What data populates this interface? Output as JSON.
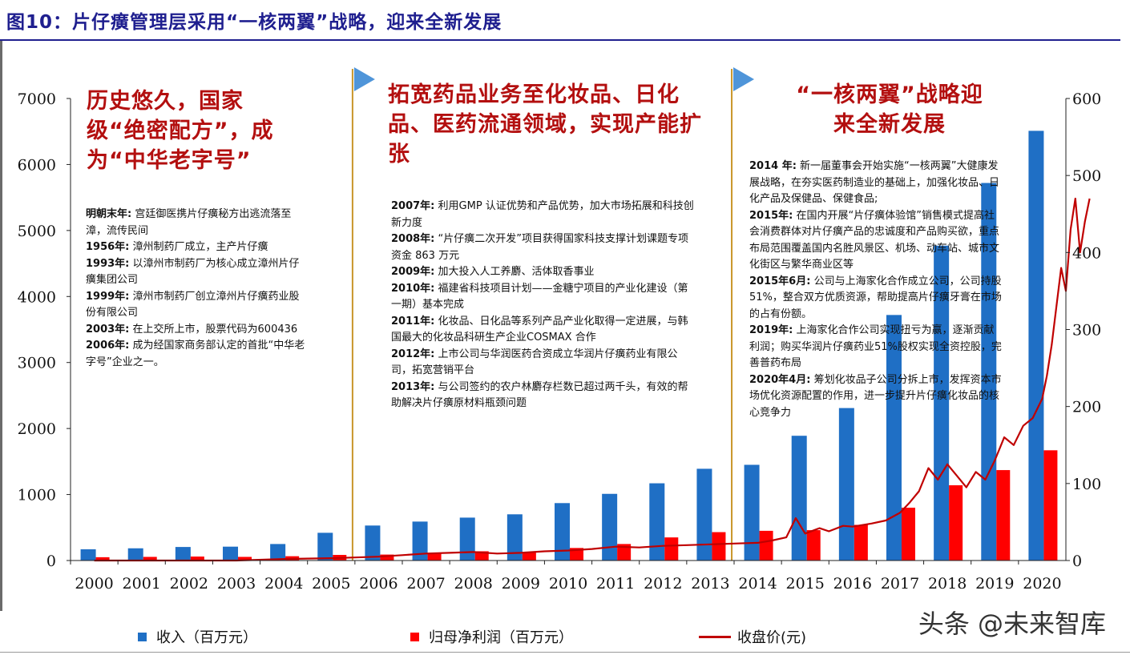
{
  "figure_title": "图10：片仔癀管理层采用“一核两翼”战略，迎来全新发展",
  "periods": [
    {
      "heading": "历史悠久，国家级“绝密配方”，成为“中华老字号”",
      "items": [
        {
          "year": "明朝末年:",
          "text": "宫廷御医携片仔癀秘方出逃流落至漳，流传民间"
        },
        {
          "year": "1956年:",
          "text": "漳州制药厂成立，主产片仔癀"
        },
        {
          "year": "1993年:",
          "text": "以漳州市制药厂为核心成立漳州片仔癀集团公司"
        },
        {
          "year": "1999年:",
          "text": "漳州市制药厂创立漳州片仔癀药业股份有限公司"
        },
        {
          "year": "2003年:",
          "text": "在上交所上市，股票代码为600436"
        },
        {
          "year": "2006年:",
          "text": "成为经国家商务部认定的首批“中华老字号”企业之一。"
        }
      ]
    },
    {
      "heading": "拓宽药品业务至化妆品、日化品、医药流通领域，实现产能扩张",
      "items": [
        {
          "year": "2007年:",
          "text": "利用GMP 认证优势和产品优势，加大市场拓展和科技创新力度"
        },
        {
          "year": "2008年:",
          "text": "“片仔癀二次开发”项目获得国家科技支撑计划课题专项资金 863 万元"
        },
        {
          "year": "2009年:",
          "text": "加大投入人工养麝、活体取香事业"
        },
        {
          "year": "2010年:",
          "text": "福建省科技项目计划——金糖宁项目的产业化建设（第一期）基本完成"
        },
        {
          "year": "2011年:",
          "text": "化妆品、日化品等系列产品产业化取得一定进展，与韩国最大的化妆品科研生产企业COSMAX 合作"
        },
        {
          "year": "2012年:",
          "text": "上市公司与华润医药合资成立华润片仔癀药业有限公司，拓宽营销平台"
        },
        {
          "year": "2013年:",
          "text": "与公司签约的农户林麝存栏数已超过两千头，有效的帮助解决片仔癀原材料瓶颈问题"
        }
      ]
    },
    {
      "heading": "“一核两翼”战略迎来全新发展",
      "items": [
        {
          "year": "2014 年:",
          "text": "新一届董事会开始实施“一核两翼”大健康发展战略，在夯实医药制造业的基础上，加强化妆品、日化产品及保健品、保健食品;"
        },
        {
          "year": "2015年:",
          "text": "在国内开展“片仔癀体验馆”销售模式提高社会消费群体对片仔癀产品的忠诚度和产品购买欲，重点布局范围覆盖国内名胜风景区、机场、动车站、城市文化街区与繁华商业区等"
        },
        {
          "year": "2015年6月:",
          "text": "公司与上海家化合作成立公司，公司持股51%，整合双方优质资源，帮助提高片仔癀牙膏在市场的占有份额。"
        },
        {
          "year": "2019年:",
          "text": "上海家化合作公司实现扭亏为赢，逐渐贡献利润；购买华润片仔癀药业51%股权实现全资控股，完善普药布局"
        },
        {
          "year": "2020年4月:",
          "text": "筹划化妆品子公司分拆上市，发挥资本市场优化资源配置的作用，进一步提升片仔癀化妆品的核心竞争力"
        }
      ]
    }
  ],
  "legend": {
    "revenue": "收入（百万元）",
    "profit": "归母净利润（百万元）",
    "price": "收盘价(元)"
  },
  "watermark": "头条 @未来智库",
  "colors": {
    "revenue": "#1f6fc5",
    "profit": "#ff0000",
    "price": "#c00000",
    "divider": "#c9962a",
    "arrow": "#4f95d9",
    "heading": "#b30f0f",
    "title": "#1f1f8f"
  },
  "chart_data": {
    "type": "bar",
    "categories": [
      "2000",
      "2001",
      "2002",
      "2003",
      "2004",
      "2005",
      "2006",
      "2007",
      "2008",
      "2009",
      "2010",
      "2011",
      "2012",
      "2013",
      "2014",
      "2015",
      "2016",
      "2017",
      "2018",
      "2019",
      "2020"
    ],
    "series": [
      {
        "name": "收入（百万元）",
        "axis": "left",
        "values": [
          170,
          185,
          205,
          210,
          250,
          420,
          530,
          590,
          650,
          700,
          870,
          1010,
          1170,
          1390,
          1450,
          1890,
          2310,
          3720,
          4770,
          5720,
          6510
        ]
      },
      {
        "name": "归母净利润（百万元）",
        "axis": "left",
        "values": [
          50,
          55,
          60,
          55,
          65,
          85,
          90,
          110,
          140,
          120,
          190,
          250,
          350,
          430,
          450,
          460,
          540,
          800,
          1140,
          1370,
          1670
        ]
      }
    ],
    "price_line": {
      "name": "收盘价(元)",
      "type": "line",
      "axis": "right",
      "x": [
        2000.0,
        2001.0,
        2002.0,
        2003.0,
        2004.0,
        2005.0,
        2005.5,
        2006.0,
        2006.5,
        2007.0,
        2007.5,
        2008.0,
        2008.5,
        2009.0,
        2009.5,
        2010.0,
        2010.5,
        2011.0,
        2011.5,
        2012.0,
        2012.5,
        2013.0,
        2013.5,
        2014.0,
        2014.3,
        2014.6,
        2014.8,
        2015.0,
        2015.3,
        2015.5,
        2015.8,
        2016.0,
        2016.4,
        2016.7,
        2017.0,
        2017.2,
        2017.4,
        2017.6,
        2017.8,
        2018.0,
        2018.2,
        2018.4,
        2018.6,
        2018.8,
        2019.0,
        2019.2,
        2019.4,
        2019.6,
        2019.8,
        2020.0,
        2020.1,
        2020.2,
        2020.3,
        2020.4,
        2020.5,
        2020.6,
        2020.7,
        2020.8,
        2020.9,
        2021.0
      ],
      "values": [
        0,
        0,
        0,
        0,
        2,
        3,
        4,
        5,
        7,
        9,
        10,
        11,
        9,
        10,
        12,
        13,
        15,
        18,
        17,
        19,
        20,
        21,
        22,
        23,
        26,
        30,
        55,
        35,
        42,
        38,
        45,
        44,
        48,
        52,
        62,
        75,
        90,
        120,
        105,
        125,
        110,
        95,
        115,
        105,
        130,
        160,
        150,
        175,
        185,
        210,
        240,
        280,
        330,
        380,
        350,
        430,
        470,
        400,
        440,
        470
      ]
    },
    "left_axis": {
      "ylim": [
        0,
        7000
      ],
      "ticks": [
        0,
        1000,
        2000,
        3000,
        4000,
        5000,
        6000,
        7000
      ]
    },
    "right_axis": {
      "ylim": [
        0,
        600
      ],
      "ticks": [
        0,
        100,
        200,
        300,
        400,
        500,
        600
      ]
    },
    "xlabel": "",
    "ylabel": "",
    "legend_position": "bottom",
    "grid": false
  }
}
